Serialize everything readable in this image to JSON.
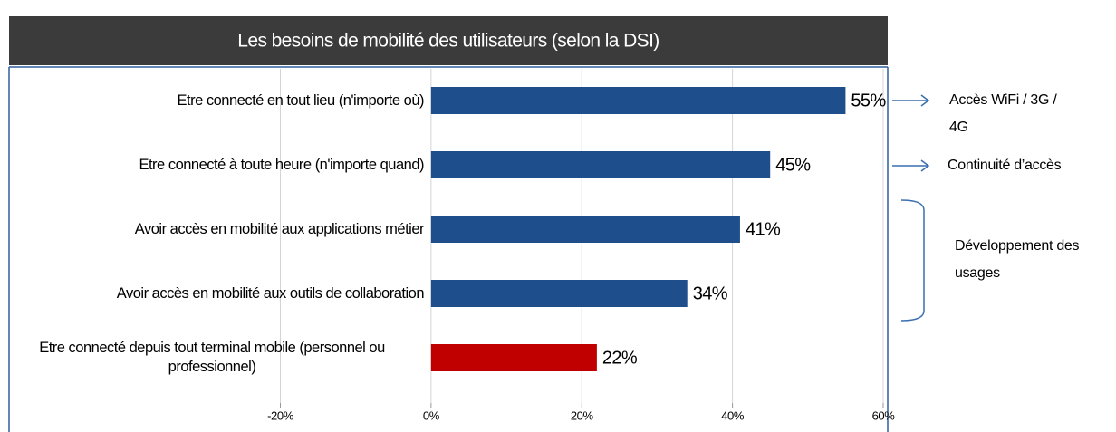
{
  "chart_data": {
    "type": "bar",
    "orientation": "horizontal",
    "title": "Les besoins de mobilité des utilisateurs (selon la DSI)",
    "categories": [
      "Etre connecté en tout lieu (n'importe où)",
      "Etre connecté à toute heure (n'importe quand)",
      "Avoir accès en mobilité aux applications métier",
      "Avoir accès en mobilité aux outils de collaboration",
      "Etre connecté depuis tout terminal mobile (personnel ou professionnel)"
    ],
    "values": [
      55,
      45,
      41,
      34,
      22
    ],
    "value_labels": [
      "55%",
      "45%",
      "41%",
      "34%",
      "22%"
    ],
    "colors": [
      "#1f4e8c",
      "#1f4e8c",
      "#1f4e8c",
      "#1f4e8c",
      "#c00000"
    ],
    "xlim": [
      -20,
      60
    ],
    "xticks": [
      {
        "value": -20,
        "label": "-20%"
      },
      {
        "value": 0,
        "label": "0%"
      },
      {
        "value": 20,
        "label": "20%"
      },
      {
        "value": 40,
        "label": "40%"
      },
      {
        "value": 60,
        "label": "60%"
      }
    ],
    "grid": true,
    "annotations": [
      "Accès WiFi / 3G / 4G",
      "Continuité d’accès",
      "Développement des usages"
    ]
  }
}
